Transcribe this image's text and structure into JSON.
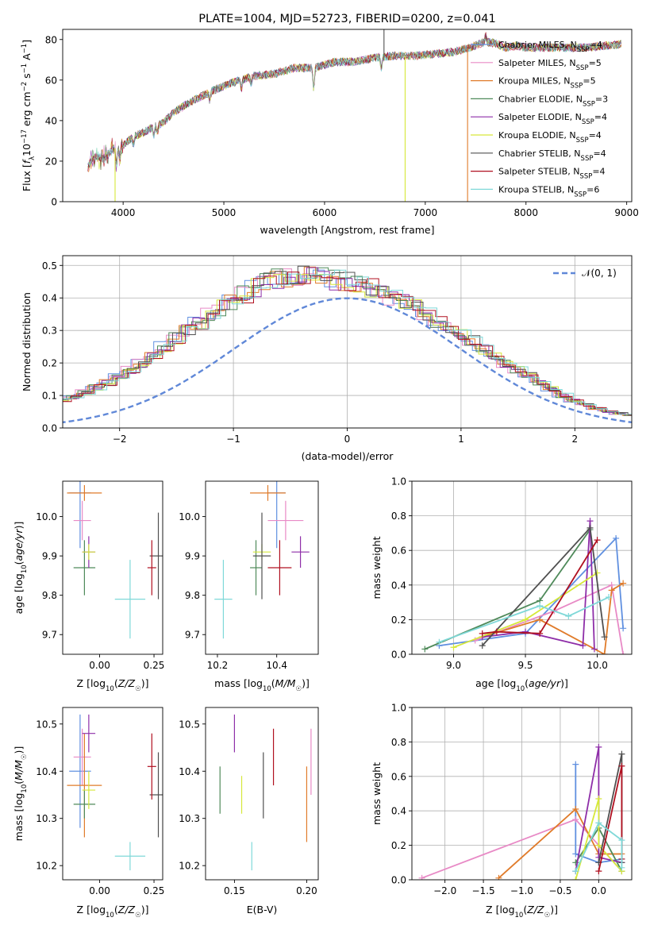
{
  "chart_data": [
    {
      "type": "line",
      "title": "PLATE=1004, MJD=52723, FIBERID=0200, z=0.041",
      "xlabel": "wavelength [Angstrom, rest frame]",
      "ylabel": "Flux [f_λ10^-17 erg cm^-2 s^-1 A^-1]",
      "xlim": [
        3400,
        9050
      ],
      "ylim": [
        0,
        85
      ],
      "xticks": [
        4000,
        5000,
        6000,
        7000,
        8000,
        9000
      ],
      "yticks": [
        0,
        20,
        40,
        60,
        80
      ],
      "legend_position": "upper-right",
      "series": [
        {
          "name": "Chabrier MILES, N_SSP=4",
          "color": "#6090e0"
        },
        {
          "name": "Salpeter MILES, N_SSP=5",
          "color": "#e88ac6"
        },
        {
          "name": "Kroupa MILES, N_SSP=5",
          "color": "#e07b2a"
        },
        {
          "name": "Chabrier ELODIE, N_SSP=3",
          "color": "#4f8a5a"
        },
        {
          "name": "Salpeter ELODIE, N_SSP=4",
          "color": "#8e2ea8"
        },
        {
          "name": "Kroupa ELODIE, N_SSP=4",
          "color": "#d6e83a"
        },
        {
          "name": "Chabrier STELIB, N_SSP=4",
          "color": "#505050"
        },
        {
          "name": "Salpeter STELIB, N_SSP=4",
          "color": "#b01020"
        },
        {
          "name": "Kroupa STELIB, N_SSP=6",
          "color": "#7fd8d8"
        }
      ],
      "continuum": {
        "x": [
          3650,
          3700,
          3800,
          3900,
          4000,
          4100,
          4200,
          4300,
          4400,
          4500,
          4700,
          4900,
          5100,
          5300,
          5500,
          5700,
          5900,
          6100,
          6300,
          6500,
          6700,
          6900,
          7100,
          7300,
          7500,
          7600,
          7700,
          7800,
          7900,
          8000,
          8200,
          8400,
          8600,
          8800,
          9000
        ],
        "y": [
          17,
          22,
          21,
          26,
          28,
          32,
          34,
          37,
          39,
          44,
          50,
          55,
          59,
          62,
          63,
          66,
          66,
          69,
          69,
          71,
          72,
          72,
          73,
          74,
          77,
          79,
          78,
          76,
          77,
          76,
          76,
          76,
          76,
          77,
          78
        ]
      },
      "outliers": [
        {
          "x": 3920,
          "to": 0,
          "series": 5
        },
        {
          "x": 6800,
          "to": 0,
          "series": 5
        },
        {
          "x": 7420,
          "to": 0,
          "series": 2
        },
        {
          "x": 6590,
          "to": 88,
          "series": 6
        }
      ]
    },
    {
      "type": "histogram",
      "xlabel": "(data-model)/error",
      "ylabel": "Normed distribution",
      "xlim": [
        -2.5,
        2.5
      ],
      "ylim": [
        0,
        0.53
      ],
      "xticks": [
        -2,
        -1,
        0,
        1,
        2
      ],
      "yticks": [
        0.0,
        0.1,
        0.2,
        0.3,
        0.4,
        0.5
      ],
      "grid": true,
      "legend_position": "upper-right",
      "reference_curve": {
        "name": "N(0,1)",
        "color": "#6088d8",
        "mean": 0,
        "sigma": 1
      },
      "bin_width": 0.1,
      "base_heights": [
        0.02,
        0.022,
        0.025,
        0.03,
        0.035,
        0.04,
        0.045,
        0.05,
        0.055,
        0.065,
        0.075,
        0.085,
        0.095,
        0.11,
        0.125,
        0.14,
        0.16,
        0.18,
        0.2,
        0.225,
        0.25,
        0.275,
        0.3,
        0.325,
        0.35,
        0.37,
        0.39,
        0.41,
        0.43,
        0.45,
        0.46,
        0.465,
        0.47,
        0.47,
        0.465,
        0.455,
        0.45,
        0.44,
        0.43,
        0.415,
        0.4,
        0.385,
        0.37,
        0.35,
        0.33,
        0.31,
        0.29,
        0.27,
        0.24,
        0.22,
        0.2,
        0.18,
        0.16,
        0.14,
        0.12,
        0.1,
        0.085,
        0.07,
        0.06,
        0.05,
        0.045,
        0.04,
        0.035,
        0.03,
        0.027,
        0.025,
        0.022,
        0.02,
        0.018,
        0.017,
        0.016,
        0.015,
        0.014,
        0.014,
        0.013
      ]
    },
    {
      "type": "scatter",
      "xlabel": "Z [log10(Z/Z☉)]",
      "ylabel": "age  [log10(age/yr)]",
      "xlim": [
        -0.17,
        0.29
      ],
      "ylim": [
        9.65,
        10.09
      ],
      "xticks": [
        0.0,
        0.25
      ],
      "xticklabels": [
        "0.00",
        "0.25"
      ],
      "yticks": [
        9.7,
        9.8,
        9.9,
        10.0
      ],
      "points": [
        {
          "x": -0.09,
          "y": 10.06,
          "xerr": 0.05,
          "yerr": 0.14,
          "color": "#6090e0"
        },
        {
          "x": -0.08,
          "y": 9.99,
          "xerr": 0.04,
          "yerr": 0.05,
          "color": "#e88ac6"
        },
        {
          "x": -0.07,
          "y": 10.06,
          "xerr": 0.08,
          "yerr": 0.02,
          "color": "#e07b2a"
        },
        {
          "x": -0.07,
          "y": 9.87,
          "xerr": 0.05,
          "yerr": 0.07,
          "color": "#4f8a5a"
        },
        {
          "x": -0.05,
          "y": 9.91,
          "xerr": 0.03,
          "yerr": 0.04,
          "color": "#8e2ea8"
        },
        {
          "x": -0.05,
          "y": 9.91,
          "xerr": 0.03,
          "yerr": 0.02,
          "color": "#d6e83a"
        },
        {
          "x": 0.27,
          "y": 9.9,
          "xerr": 0.04,
          "yerr": 0.11,
          "color": "#505050"
        },
        {
          "x": 0.24,
          "y": 9.87,
          "xerr": 0.02,
          "yerr": 0.07,
          "color": "#b01020"
        },
        {
          "x": 0.14,
          "y": 9.79,
          "xerr": 0.07,
          "yerr": 0.1,
          "color": "#7fd8d8"
        }
      ]
    },
    {
      "type": "scatter",
      "xlabel": "mass [log10(M/M☉)]",
      "ylabel": "",
      "xlim": [
        10.16,
        10.54
      ],
      "ylim": [
        9.65,
        10.09
      ],
      "xticks": [
        10.2,
        10.4
      ],
      "yticks": [
        9.7,
        9.8,
        9.9,
        10.0
      ],
      "points": [
        {
          "x": 10.4,
          "y": 10.06,
          "xerr": 0.03,
          "yerr": 0.14,
          "color": "#6090e0"
        },
        {
          "x": 10.43,
          "y": 9.99,
          "xerr": 0.06,
          "yerr": 0.05,
          "color": "#e88ac6"
        },
        {
          "x": 10.37,
          "y": 10.06,
          "xerr": 0.06,
          "yerr": 0.02,
          "color": "#e07b2a"
        },
        {
          "x": 10.33,
          "y": 9.87,
          "xerr": 0.02,
          "yerr": 0.07,
          "color": "#4f8a5a"
        },
        {
          "x": 10.48,
          "y": 9.91,
          "xerr": 0.03,
          "yerr": 0.04,
          "color": "#8e2ea8"
        },
        {
          "x": 10.35,
          "y": 9.91,
          "xerr": 0.03,
          "yerr": 0.02,
          "color": "#d6e83a"
        },
        {
          "x": 10.35,
          "y": 9.9,
          "xerr": 0.03,
          "yerr": 0.11,
          "color": "#505050"
        },
        {
          "x": 10.41,
          "y": 9.87,
          "xerr": 0.04,
          "yerr": 0.07,
          "color": "#b01020"
        },
        {
          "x": 10.22,
          "y": 9.79,
          "xerr": 0.03,
          "yerr": 0.1,
          "color": "#7fd8d8"
        }
      ]
    },
    {
      "type": "line",
      "xlabel": "age  [log10(age/yr)]",
      "ylabel": "mass weight",
      "xlim": [
        8.71,
        10.24
      ],
      "ylim": [
        0,
        1
      ],
      "xticks": [
        9.0,
        9.5,
        10.0
      ],
      "yticks": [
        0.0,
        0.2,
        0.4,
        0.6,
        0.8,
        1.0
      ],
      "grid": true,
      "series": [
        {
          "color": "#6090e0",
          "x": [
            8.9,
            9.5,
            10.13,
            10.18
          ],
          "y": [
            0.05,
            0.12,
            0.67,
            0.15
          ]
        },
        {
          "color": "#e88ac6",
          "x": [
            9.15,
            9.7,
            10.1,
            10.18
          ],
          "y": [
            0.08,
            0.25,
            0.4,
            0.0
          ]
        },
        {
          "color": "#e07b2a",
          "x": [
            9.2,
            9.6,
            10.05,
            10.1,
            10.18
          ],
          "y": [
            0.1,
            0.2,
            0.0,
            0.37,
            0.41
          ]
        },
        {
          "color": "#4f8a5a",
          "x": [
            8.8,
            9.6,
            9.95
          ],
          "y": [
            0.03,
            0.31,
            0.72
          ]
        },
        {
          "color": "#8e2ea8",
          "x": [
            9.2,
            9.5,
            9.9,
            9.95,
            9.98
          ],
          "y": [
            0.1,
            0.13,
            0.05,
            0.77,
            0.03
          ]
        },
        {
          "color": "#d6e83a",
          "x": [
            9.0,
            9.5,
            10.0
          ],
          "y": [
            0.04,
            0.2,
            0.47
          ]
        },
        {
          "color": "#505050",
          "x": [
            9.2,
            9.95,
            10.05
          ],
          "y": [
            0.05,
            0.73,
            0.1
          ]
        },
        {
          "color": "#b01020",
          "x": [
            9.2,
            9.3,
            9.6,
            10.0
          ],
          "y": [
            0.12,
            0.13,
            0.12,
            0.66
          ]
        },
        {
          "color": "#7fd8d8",
          "x": [
            8.9,
            9.6,
            9.8,
            10.08
          ],
          "y": [
            0.07,
            0.28,
            0.22,
            0.33
          ]
        }
      ]
    },
    {
      "type": "scatter",
      "xlabel": "Z [log10(Z/Z☉)]",
      "ylabel": "mass [log10(M/M☉)]",
      "xlim": [
        -0.17,
        0.29
      ],
      "ylim": [
        10.17,
        10.535
      ],
      "xticks": [
        0.0,
        0.25
      ],
      "xticklabels": [
        "0.00",
        "0.25"
      ],
      "yticks": [
        10.2,
        10.3,
        10.4,
        10.5
      ],
      "points": [
        {
          "x": -0.09,
          "y": 10.4,
          "xerr": 0.05,
          "yerr": 0.12,
          "color": "#6090e0"
        },
        {
          "x": -0.08,
          "y": 10.43,
          "xerr": 0.04,
          "yerr": 0.06,
          "color": "#e88ac6"
        },
        {
          "x": -0.07,
          "y": 10.37,
          "xerr": 0.08,
          "yerr": 0.11,
          "color": "#e07b2a"
        },
        {
          "x": -0.07,
          "y": 10.33,
          "xerr": 0.05,
          "yerr": 0.03,
          "color": "#4f8a5a"
        },
        {
          "x": -0.05,
          "y": 10.48,
          "xerr": 0.03,
          "yerr": 0.04,
          "color": "#8e2ea8"
        },
        {
          "x": -0.05,
          "y": 10.36,
          "xerr": 0.03,
          "yerr": 0.04,
          "color": "#d6e83a"
        },
        {
          "x": 0.27,
          "y": 10.35,
          "xerr": 0.04,
          "yerr": 0.09,
          "color": "#505050"
        },
        {
          "x": 0.24,
          "y": 10.41,
          "xerr": 0.02,
          "yerr": 0.07,
          "color": "#b01020"
        },
        {
          "x": 0.14,
          "y": 10.22,
          "xerr": 0.07,
          "yerr": 0.03,
          "color": "#7fd8d8"
        }
      ]
    },
    {
      "type": "scatter",
      "xlabel": "E(B-V)",
      "ylabel": "",
      "xlim": [
        0.13,
        0.208
      ],
      "ylim": [
        10.17,
        10.535
      ],
      "xticks": [
        0.15,
        0.2
      ],
      "yticks": [
        10.2,
        10.3,
        10.4,
        10.5
      ],
      "points": [
        {
          "x": 0.14,
          "y": 10.36,
          "yerr": 0.05,
          "color": "#4f8a5a"
        },
        {
          "x": 0.15,
          "y": 10.48,
          "yerr": 0.04,
          "color": "#8e2ea8"
        },
        {
          "x": 0.155,
          "y": 10.35,
          "yerr": 0.04,
          "color": "#d6e83a"
        },
        {
          "x": 0.162,
          "y": 10.22,
          "yerr": 0.03,
          "color": "#7fd8d8"
        },
        {
          "x": 0.17,
          "y": 10.37,
          "yerr": 0.07,
          "color": "#505050"
        },
        {
          "x": 0.177,
          "y": 10.43,
          "yerr": 0.06,
          "color": "#b01020"
        },
        {
          "x": 0.2,
          "y": 10.33,
          "yerr": 0.08,
          "color": "#e07b2a"
        },
        {
          "x": 0.203,
          "y": 10.42,
          "yerr": 0.07,
          "color": "#e88ac6"
        }
      ]
    },
    {
      "type": "line",
      "xlabel": "Z [log10(Z/Z☉)]",
      "ylabel": "mass weight",
      "xlim": [
        -2.43,
        0.43
      ],
      "ylim": [
        0,
        1
      ],
      "xticks": [
        -2.0,
        -1.5,
        -1.0,
        -0.5,
        0.0
      ],
      "yticks": [
        0.0,
        0.2,
        0.4,
        0.6,
        0.8,
        1.0
      ],
      "grid": true,
      "series": [
        {
          "color": "#6090e0",
          "x": [
            -0.3,
            -0.3,
            0.0,
            0.3
          ],
          "y": [
            0.67,
            0.15,
            0.1,
            0.12
          ]
        },
        {
          "color": "#e88ac6",
          "x": [
            -2.3,
            -0.3,
            0.3
          ],
          "y": [
            0.01,
            0.35,
            0.05
          ]
        },
        {
          "color": "#e07b2a",
          "x": [
            -1.3,
            -0.3,
            0.0,
            0.3
          ],
          "y": [
            0.01,
            0.41,
            0.15,
            0.15
          ]
        },
        {
          "color": "#4f8a5a",
          "x": [
            -0.3,
            0.0,
            0.3
          ],
          "y": [
            0.1,
            0.3,
            0.05
          ]
        },
        {
          "color": "#8e2ea8",
          "x": [
            -0.3,
            0.0,
            0.0,
            0.3
          ],
          "y": [
            0.05,
            0.77,
            0.13,
            0.1
          ]
        },
        {
          "color": "#d6e83a",
          "x": [
            -0.3,
            0.0,
            0.0,
            0.3
          ],
          "y": [
            0.0,
            0.47,
            0.2,
            0.05
          ]
        },
        {
          "color": "#505050",
          "x": [
            0.0,
            0.3,
            0.3
          ],
          "y": [
            0.1,
            0.73,
            0.1
          ]
        },
        {
          "color": "#b01020",
          "x": [
            0.0,
            0.3,
            0.3
          ],
          "y": [
            0.05,
            0.66,
            0.12
          ]
        },
        {
          "color": "#7fd8d8",
          "x": [
            -0.3,
            0.0,
            0.3,
            0.3
          ],
          "y": [
            0.05,
            0.33,
            0.23,
            0.07
          ]
        }
      ]
    }
  ]
}
